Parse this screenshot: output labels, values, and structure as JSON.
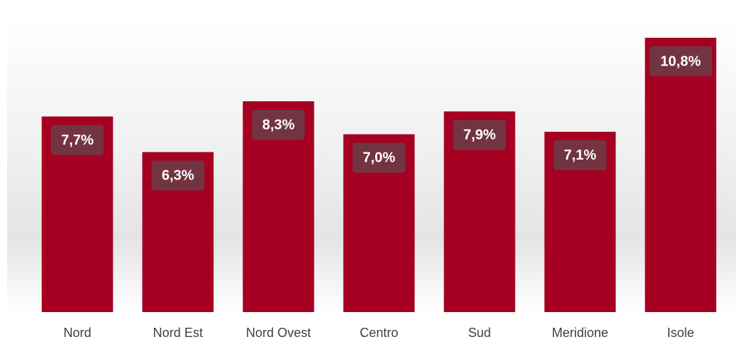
{
  "chart_data": {
    "type": "bar",
    "categories": [
      "Nord",
      "Nord Est",
      "Nord Ovest",
      "Centro",
      "Sud",
      "Meridione",
      "Isole"
    ],
    "values": [
      7.7,
      6.3,
      8.3,
      7.0,
      7.9,
      7.1,
      10.8
    ],
    "value_labels": [
      "7,7%",
      "6,3%",
      "8,3%",
      "7,0%",
      "7,9%",
      "7,1%",
      "10,8%"
    ],
    "color": "#a50021"
  }
}
